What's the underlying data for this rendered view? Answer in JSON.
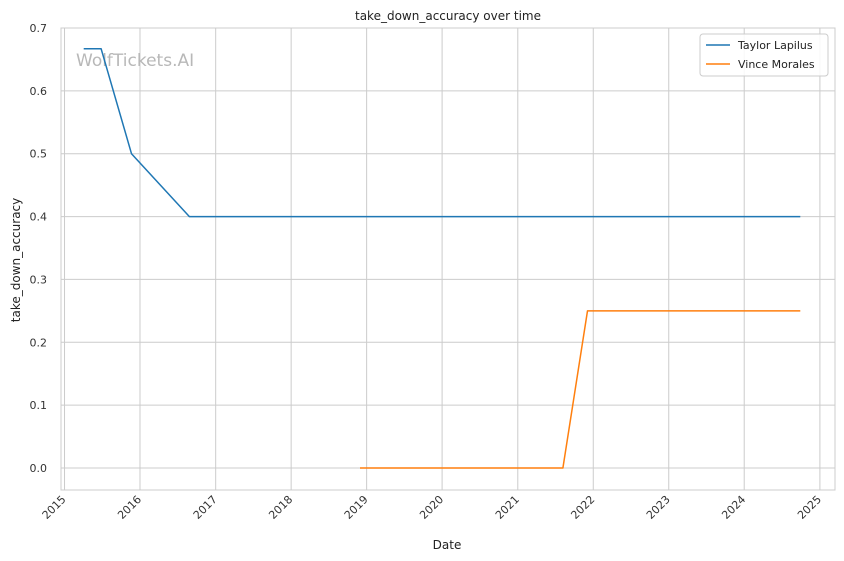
{
  "watermark": "WolfTickets.AI",
  "chart_data": {
    "type": "line",
    "title": "take_down_accuracy over time",
    "xlabel": "Date",
    "ylabel": "take_down_accuracy",
    "xlim": [
      "2014-12-15",
      "2025-03-15"
    ],
    "ylim": [
      -0.035,
      0.7
    ],
    "x_ticks": [
      "2015",
      "2016",
      "2017",
      "2018",
      "2019",
      "2020",
      "2021",
      "2022",
      "2023",
      "2024",
      "2025"
    ],
    "y_ticks": [
      "0.0",
      "0.1",
      "0.2",
      "0.3",
      "0.4",
      "0.5",
      "0.6",
      "0.7"
    ],
    "grid": true,
    "legend_position": "top-right",
    "series": [
      {
        "name": "Taylor Lapilus",
        "color": "#1f77b4",
        "points": [
          {
            "x": "2015-04-04",
            "y": 0.667
          },
          {
            "x": "2015-06-27",
            "y": 0.667
          },
          {
            "x": "2015-11-21",
            "y": 0.5
          },
          {
            "x": "2016-08-27",
            "y": 0.4
          },
          {
            "x": "2024-09-28",
            "y": 0.4
          }
        ]
      },
      {
        "name": "Vince Morales",
        "color": "#ff7f0e",
        "points": [
          {
            "x": "2018-11-30",
            "y": 0.0
          },
          {
            "x": "2021-08-07",
            "y": 0.0
          },
          {
            "x": "2021-12-04",
            "y": 0.25
          },
          {
            "x": "2024-09-28",
            "y": 0.25
          }
        ]
      }
    ]
  }
}
